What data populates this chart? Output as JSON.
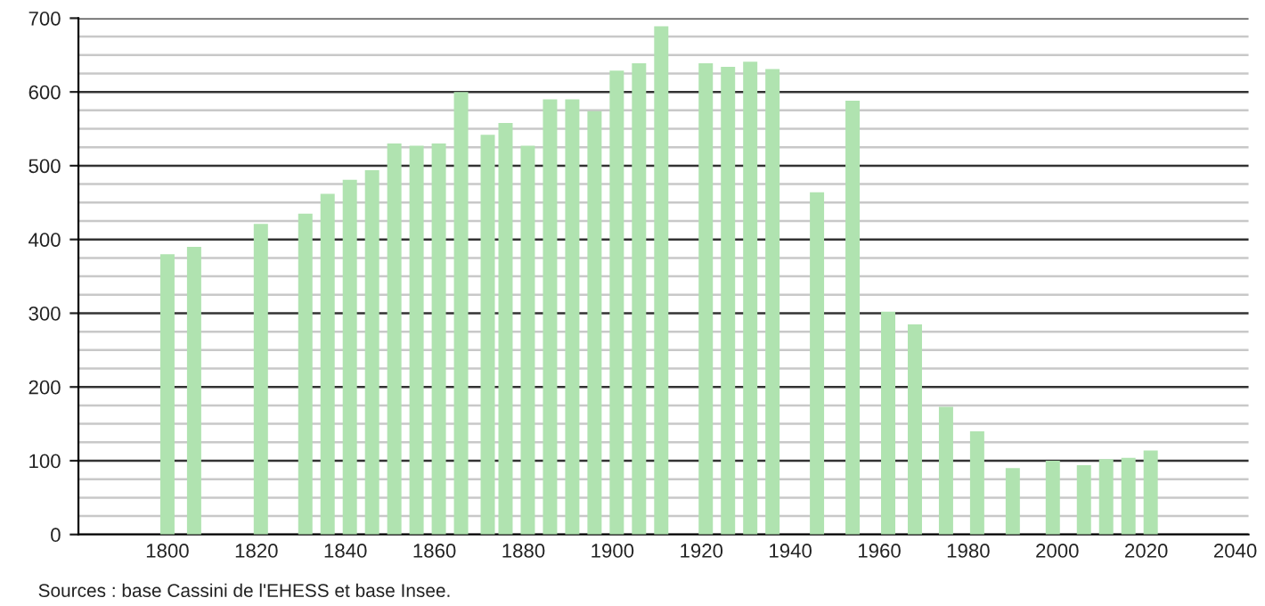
{
  "chart_data": {
    "type": "bar",
    "x": [
      1800,
      1806,
      1821,
      1831,
      1836,
      1841,
      1846,
      1851,
      1856,
      1861,
      1866,
      1872,
      1876,
      1881,
      1886,
      1891,
      1896,
      1901,
      1906,
      1911,
      1921,
      1926,
      1931,
      1936,
      1946,
      1954,
      1962,
      1968,
      1975,
      1982,
      1990,
      1999,
      2006,
      2011,
      2016,
      2021
    ],
    "values": [
      380,
      390,
      421,
      435,
      462,
      481,
      494,
      530,
      527,
      530,
      600,
      542,
      558,
      527,
      590,
      590,
      574,
      629,
      639,
      689,
      639,
      634,
      641,
      631,
      464,
      588,
      302,
      285,
      173,
      140,
      90,
      100,
      94,
      102,
      104,
      114
    ],
    "color": "#b0e3b0",
    "xlim": [
      1780,
      2043
    ],
    "xticks": [
      1800,
      1820,
      1840,
      1860,
      1880,
      1900,
      1920,
      1940,
      1960,
      1980,
      2000,
      2020,
      2040
    ],
    "ylim": [
      0,
      700
    ],
    "yticks": [
      0,
      100,
      200,
      300,
      400,
      500,
      600,
      700
    ],
    "grid": "y",
    "annotations": [
      "Sources : base Cassini de l'EHESS et base Insee."
    ]
  }
}
